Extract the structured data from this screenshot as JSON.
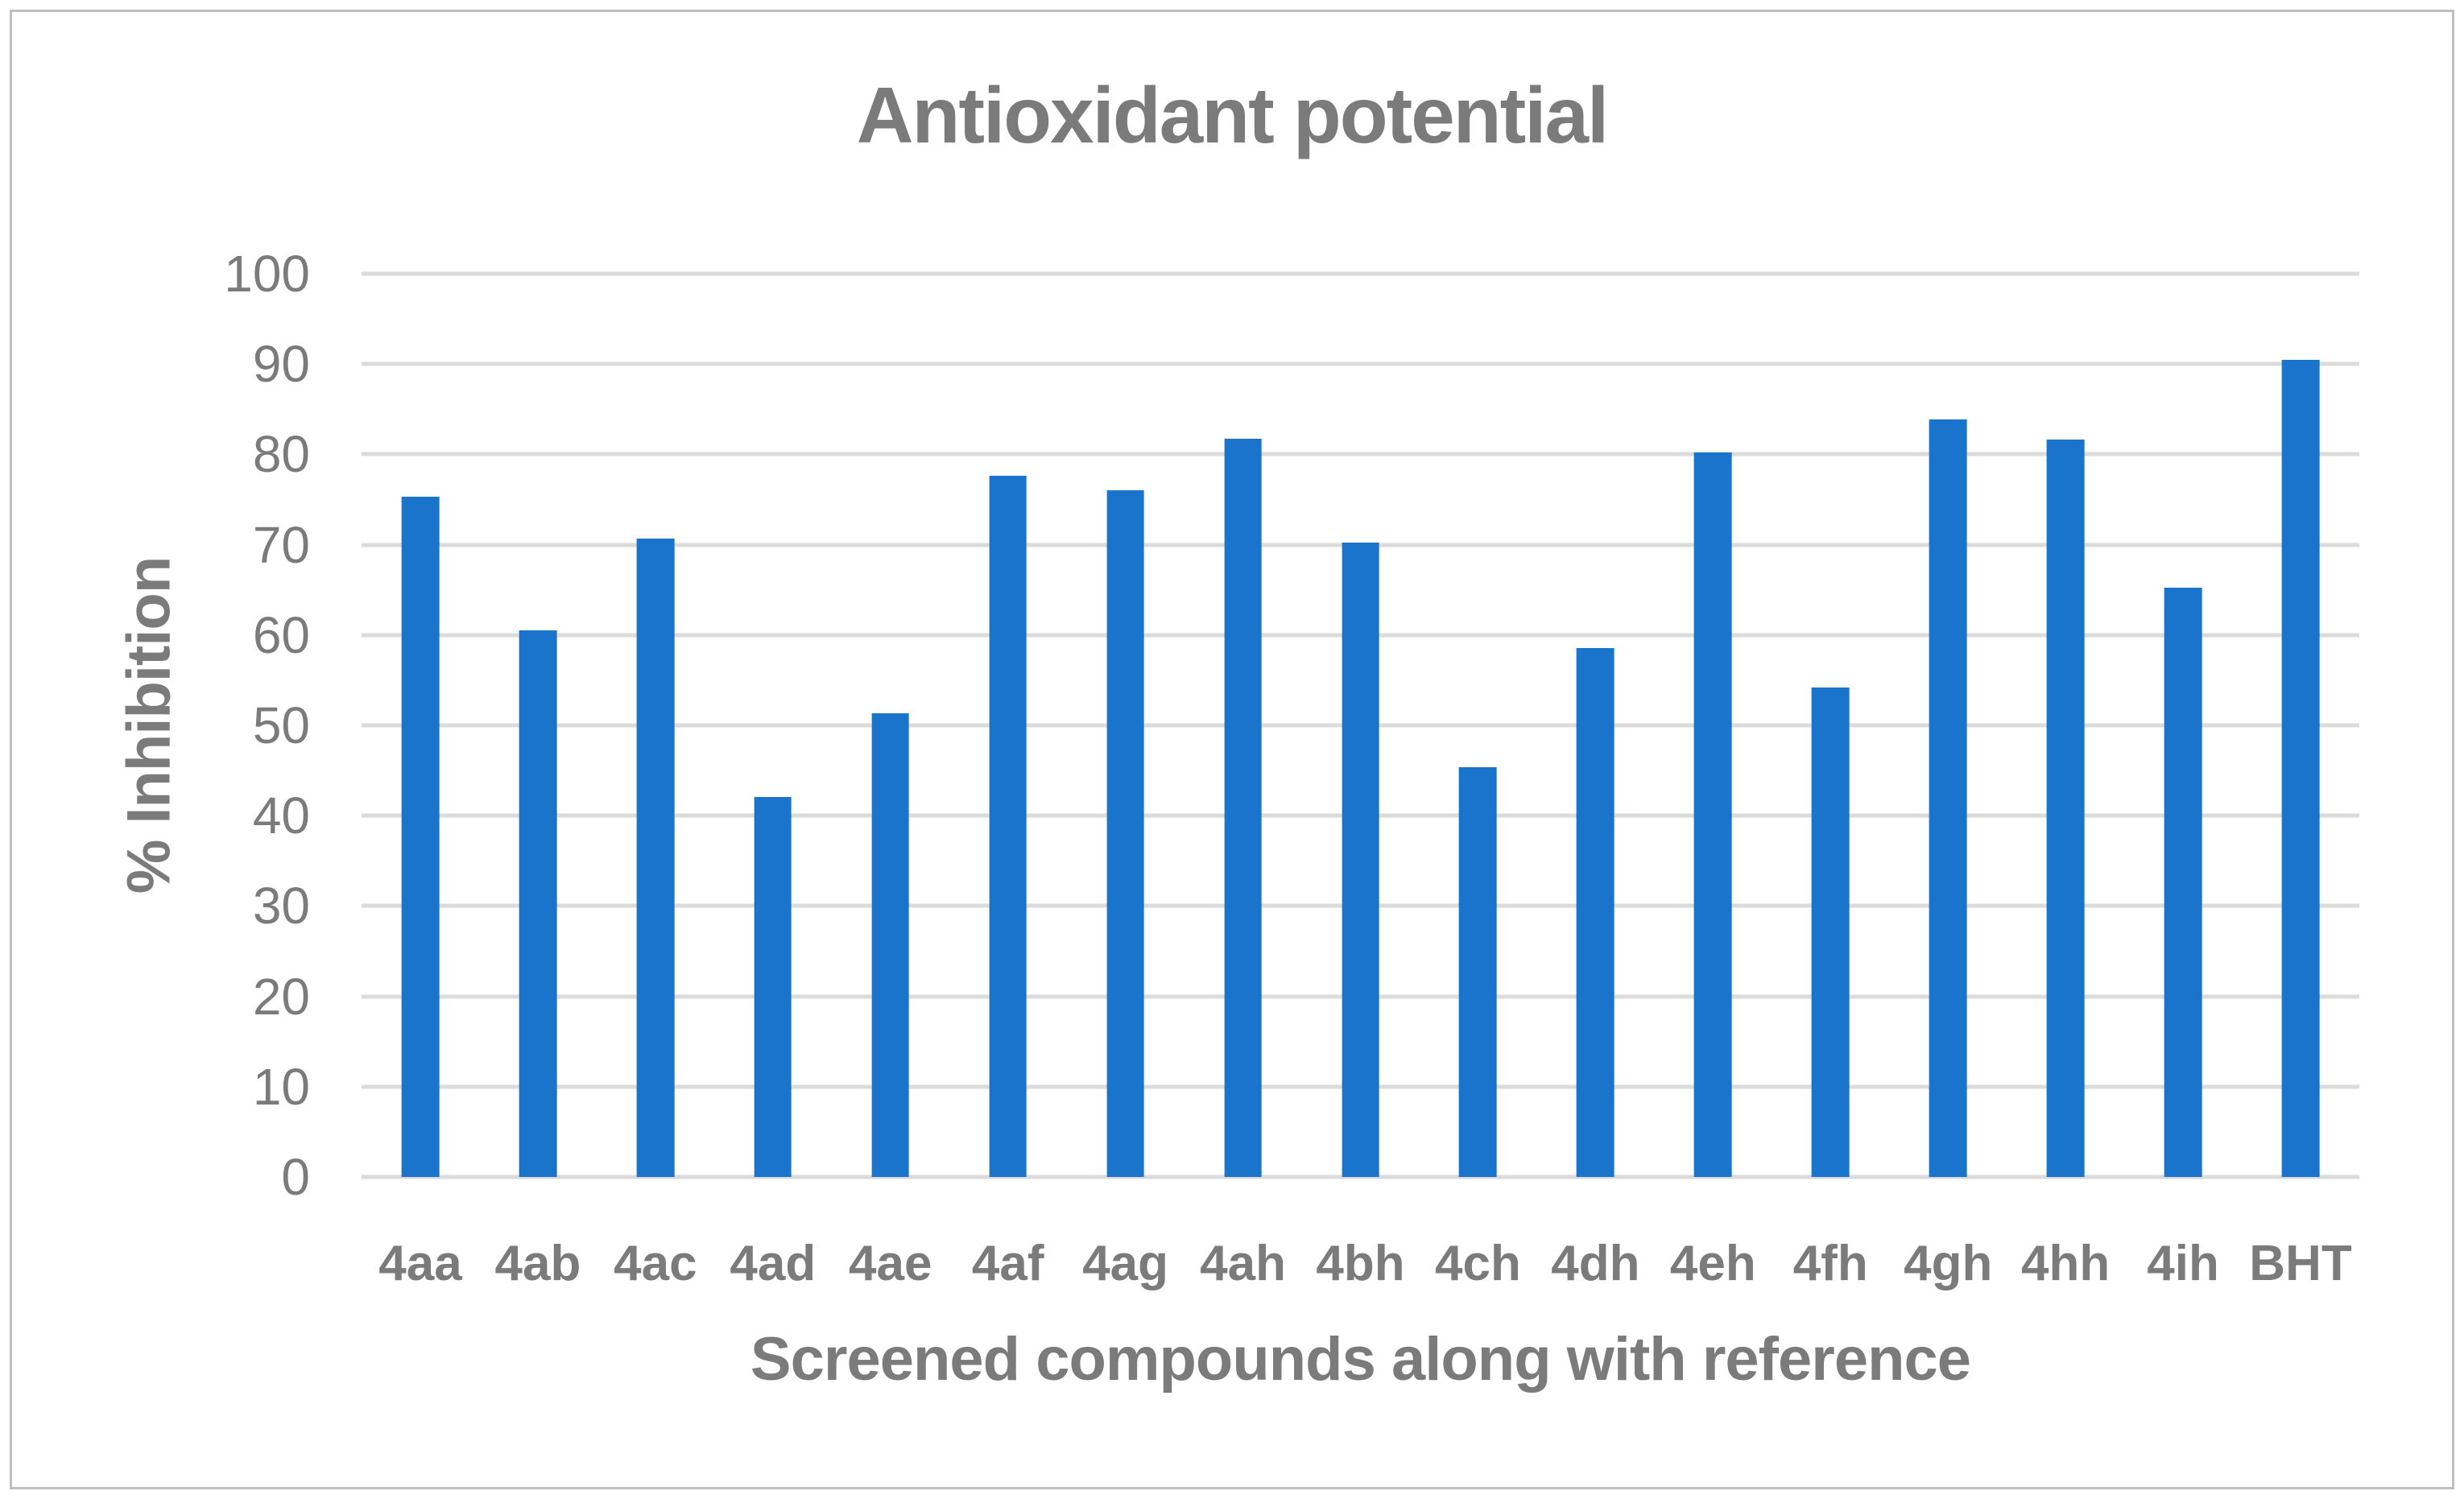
{
  "chart_data": {
    "type": "bar",
    "title": "Antioxidant potential",
    "xlabel": "Screened compounds along with reference",
    "ylabel": "% Inhibition",
    "categories": [
      "4aa",
      "4ab",
      "4ac",
      "4ad",
      "4ae",
      "4af",
      "4ag",
      "4ah",
      "4bh",
      "4ch",
      "4dh",
      "4eh",
      "4fh",
      "4gh",
      "4hh",
      "4ih",
      "BHT"
    ],
    "values": [
      75.3,
      60.5,
      70.7,
      42.1,
      51.3,
      77.6,
      76,
      81.7,
      70.2,
      45.4,
      58.6,
      80.2,
      54.2,
      83.9,
      81.6,
      65.2,
      90.5
    ],
    "ylim": [
      0,
      100
    ],
    "yticks": [
      0,
      10,
      20,
      30,
      40,
      50,
      60,
      70,
      80,
      90,
      100
    ],
    "grid": true,
    "legend": "none",
    "bar_color": "#1B74CB",
    "gridline_color": "#DBDBDB",
    "text_color": "#7B7B7B",
    "border_color": "#BFBFBF"
  }
}
